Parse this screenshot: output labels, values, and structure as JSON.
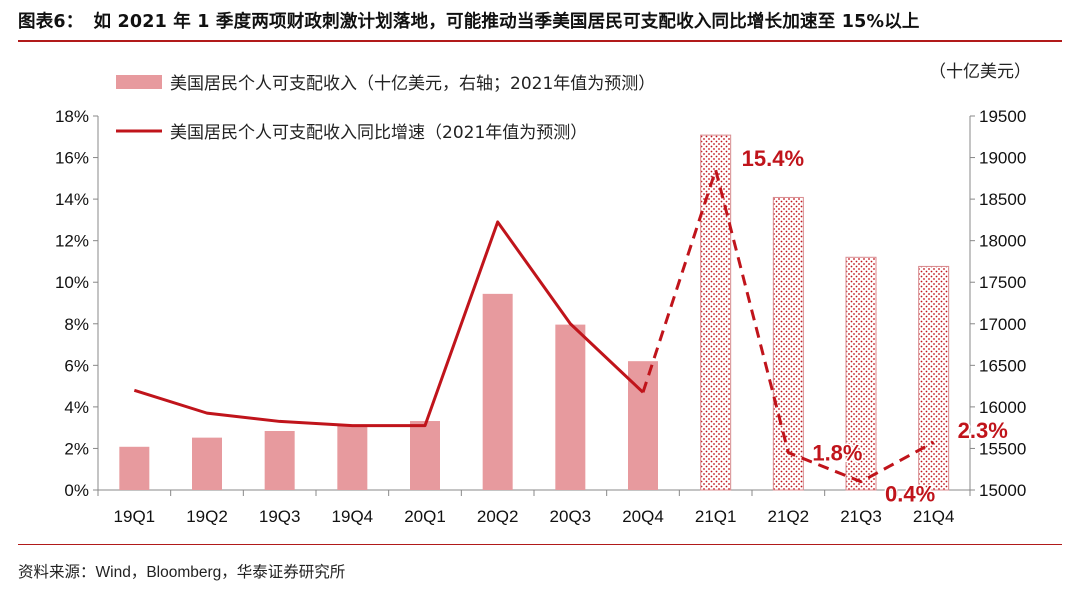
{
  "header": {
    "figure_tag": "图表6：",
    "title": "如 2021 年 1 季度两项财政刺激计划落地，可能推动当季美国居民可支配收入同比增长加速至 15%以上"
  },
  "footer": {
    "source": "资料来源：Wind，Bloomberg，华泰证券研究所"
  },
  "colors": {
    "bar": "#e79a9e",
    "line": "#c0141b",
    "rule": "#b11a1a"
  },
  "chart_data": {
    "type": "bar+line",
    "categories": [
      "19Q1",
      "19Q2",
      "19Q3",
      "19Q4",
      "20Q1",
      "20Q2",
      "20Q3",
      "20Q4",
      "21Q1",
      "21Q2",
      "21Q3",
      "21Q4"
    ],
    "forecast_start_index": 8,
    "right_axis_unit": "（十亿美元）",
    "left_axis": {
      "min": 0,
      "max": 18,
      "step": 2,
      "tick_labels": [
        "0%",
        "2%",
        "4%",
        "6%",
        "8%",
        "10%",
        "12%",
        "14%",
        "16%",
        "18%"
      ]
    },
    "right_axis": {
      "min": 15000,
      "max": 19500,
      "step": 500,
      "tick_labels": [
        "15000",
        "15500",
        "16000",
        "16500",
        "17000",
        "17500",
        "18000",
        "18500",
        "19000",
        "19500"
      ]
    },
    "series": [
      {
        "name": "美国居民个人可支配收入（十亿美元，右轴；2021年值为预测）",
        "type": "bar",
        "axis": "right",
        "values": [
          15520,
          15630,
          15710,
          15770,
          15830,
          17360,
          16990,
          16550,
          19270,
          18520,
          17800,
          17690
        ]
      },
      {
        "name": "美国居民个人可支配收入同比增速（2021年值为预测）",
        "type": "line",
        "axis": "left",
        "values": [
          4.8,
          3.7,
          3.3,
          3.1,
          3.1,
          12.9,
          8.0,
          4.7,
          15.4,
          1.8,
          0.4,
          2.3
        ]
      }
    ],
    "annotations": [
      {
        "index": 8,
        "text": "15.4%"
      },
      {
        "index": 9,
        "text": "1.8%"
      },
      {
        "index": 10,
        "text": "0.4%"
      },
      {
        "index": 11,
        "text": "2.3%"
      }
    ]
  }
}
